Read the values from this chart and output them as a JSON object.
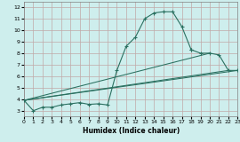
{
  "xlabel": "Humidex (Indice chaleur)",
  "bg_color": "#ceeeed",
  "grid_color": "#c0a8a8",
  "line_color": "#2a7060",
  "xlim": [
    0,
    23
  ],
  "ylim": [
    2.5,
    12.5
  ],
  "xticks": [
    0,
    1,
    2,
    3,
    4,
    5,
    6,
    7,
    8,
    9,
    10,
    11,
    12,
    13,
    14,
    15,
    16,
    17,
    18,
    19,
    20,
    21,
    22,
    23
  ],
  "yticks": [
    3,
    4,
    5,
    6,
    7,
    8,
    9,
    10,
    11,
    12
  ],
  "main_x": [
    0,
    1,
    2,
    3,
    4,
    5,
    6,
    7,
    8,
    9,
    10,
    11,
    12,
    13,
    14,
    15,
    16,
    17,
    18
  ],
  "main_y": [
    3.9,
    3.0,
    3.3,
    3.3,
    3.5,
    3.6,
    3.7,
    3.55,
    3.6,
    3.5,
    6.5,
    8.6,
    9.4,
    11.0,
    11.5,
    11.6,
    11.6,
    10.3,
    8.3
  ],
  "right_x": [
    18,
    19,
    20,
    21,
    22,
    23
  ],
  "right_y": [
    8.3,
    8.0,
    8.0,
    7.85,
    6.5,
    6.5
  ],
  "line1_x": [
    0,
    23
  ],
  "line1_y": [
    3.9,
    6.5
  ],
  "line2_x": [
    0,
    22
  ],
  "line2_y": [
    3.9,
    6.5
  ],
  "line3_x": [
    0,
    20
  ],
  "line3_y": [
    3.9,
    8.0
  ]
}
